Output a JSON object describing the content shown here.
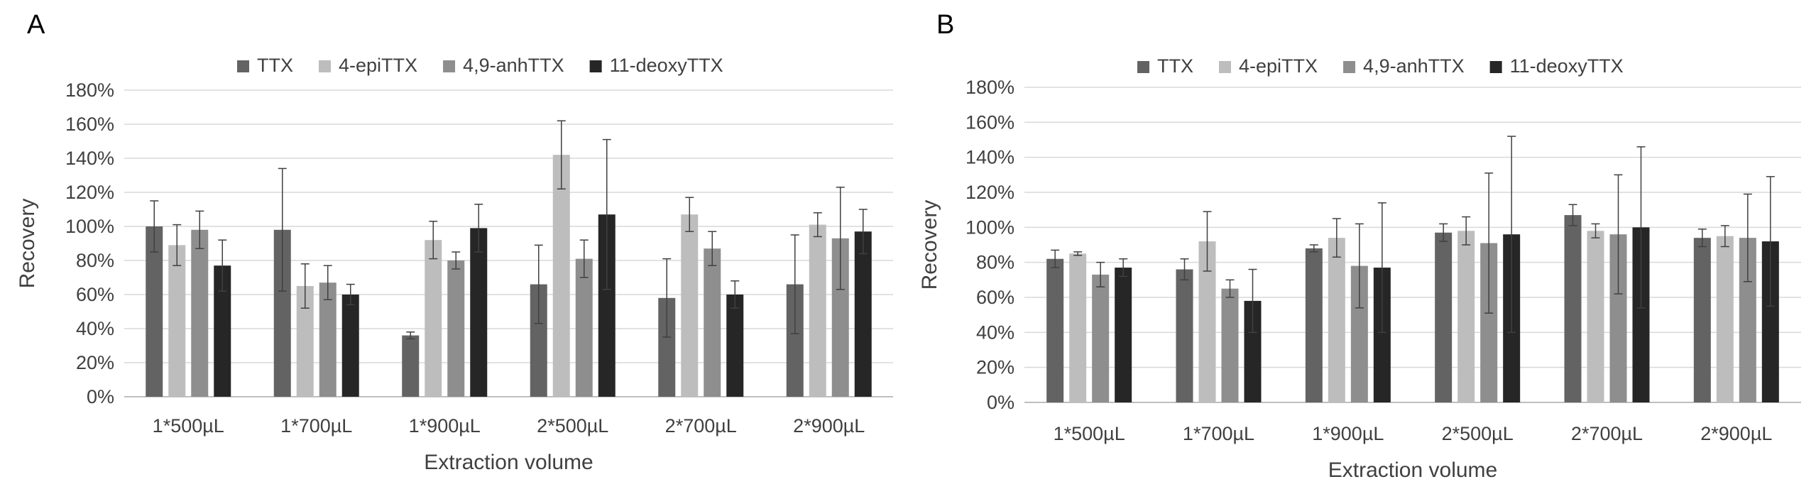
{
  "chart_data": [
    {
      "type": "bar",
      "panel_label": "A",
      "title": "",
      "xlabel": "Extraction volume",
      "ylabel": "Recovery",
      "ylim": [
        0,
        180
      ],
      "yticks": [
        "0%",
        "20%",
        "40%",
        "60%",
        "80%",
        "100%",
        "120%",
        "140%",
        "160%",
        "180%"
      ],
      "categories": [
        "1*500µL",
        "1*700µL",
        "1*900µL",
        "2*500µL",
        "2*700µL",
        "2*900µL"
      ],
      "grid": true,
      "legend_position": "top",
      "series": [
        {
          "name": "TTX",
          "color": "#636363",
          "values": [
            100,
            98,
            36,
            66,
            58,
            66
          ],
          "errors": [
            15,
            36,
            2,
            23,
            23,
            29
          ]
        },
        {
          "name": "4-epiTTX",
          "color": "#bdbdbd",
          "values": [
            89,
            65,
            92,
            142,
            107,
            101
          ],
          "errors": [
            12,
            13,
            11,
            20,
            10,
            7
          ]
        },
        {
          "name": "4,9-anhTTX",
          "color": "#8e8e8e",
          "values": [
            98,
            67,
            80,
            81,
            87,
            93
          ],
          "errors": [
            11,
            10,
            5,
            11,
            10,
            30
          ]
        },
        {
          "name": "11-deoxyTTX",
          "color": "#262626",
          "values": [
            77,
            60,
            99,
            107,
            60,
            97
          ],
          "errors": [
            15,
            6,
            14,
            44,
            8,
            13
          ]
        }
      ]
    },
    {
      "type": "bar",
      "panel_label": "B",
      "title": "",
      "xlabel": "Extraction volume",
      "ylabel": "Recovery",
      "ylim": [
        0,
        180
      ],
      "yticks": [
        "0%",
        "20%",
        "40%",
        "60%",
        "80%",
        "100%",
        "120%",
        "140%",
        "160%",
        "180%"
      ],
      "categories": [
        "1*500µL",
        "1*700µL",
        "1*900µL",
        "2*500µL",
        "2*700µL",
        "2*900µL"
      ],
      "grid": true,
      "legend_position": "top",
      "series": [
        {
          "name": "TTX",
          "color": "#636363",
          "values": [
            82,
            76,
            88,
            97,
            107,
            94
          ],
          "errors": [
            5,
            6,
            2,
            5,
            6,
            5
          ]
        },
        {
          "name": "4-epiTTX",
          "color": "#bdbdbd",
          "values": [
            85,
            92,
            94,
            98,
            98,
            95
          ],
          "errors": [
            1,
            17,
            11,
            8,
            4,
            6
          ]
        },
        {
          "name": "4,9-anhTTX",
          "color": "#8e8e8e",
          "values": [
            73,
            65,
            78,
            91,
            96,
            94
          ],
          "errors": [
            7,
            5,
            24,
            40,
            34,
            25
          ]
        },
        {
          "name": "11-deoxyTTX",
          "color": "#262626",
          "values": [
            77,
            58,
            77,
            96,
            100,
            92
          ],
          "errors": [
            5,
            18,
            37,
            56,
            46,
            37
          ]
        }
      ]
    }
  ]
}
